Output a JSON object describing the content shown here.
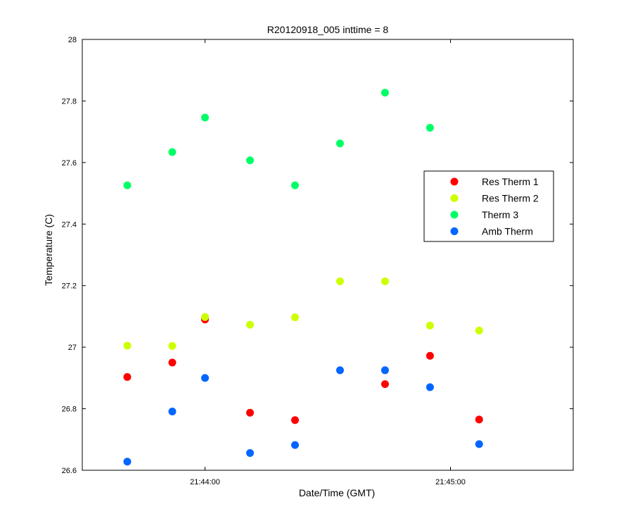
{
  "chart_data": {
    "type": "scatter",
    "title": "R20120918_005 inttime = 8",
    "xlabel": "Date/Time (GMT)",
    "ylabel": "Temperature (C)",
    "x_tick_labels": [
      "21:44:00",
      "21:45:00"
    ],
    "x_ticks": [
      "21:44:00",
      "21:45:00"
    ],
    "xlim": [
      "21:43:30",
      "21:45:30"
    ],
    "ylim": [
      26.6,
      28
    ],
    "y_ticks": [
      26.6,
      26.8,
      27,
      27.2,
      27.4,
      27.6,
      27.8,
      28
    ],
    "y_tick_labels": [
      "26.6",
      "26.8",
      "27",
      "27.2",
      "27.4",
      "27.6",
      "27.8",
      "28"
    ],
    "grid": false,
    "legend_position": "upper-right",
    "series": [
      {
        "name": "Res Therm 1",
        "color": "#ff0000",
        "points": [
          {
            "x": "21:43:41",
            "y": 26.903
          },
          {
            "x": "21:43:52",
            "y": 26.95
          },
          {
            "x": "21:44:00",
            "y": 27.09
          },
          {
            "x": "21:44:11",
            "y": 26.787
          },
          {
            "x": "21:44:22",
            "y": 26.763
          },
          {
            "x": "21:44:44",
            "y": 26.88
          },
          {
            "x": "21:44:55",
            "y": 26.972
          },
          {
            "x": "21:45:07",
            "y": 26.765
          }
        ]
      },
      {
        "name": "Res Therm 2",
        "color": "#ccff00",
        "points": [
          {
            "x": "21:43:41",
            "y": 27.005
          },
          {
            "x": "21:43:52",
            "y": 27.004
          },
          {
            "x": "21:44:00",
            "y": 27.098
          },
          {
            "x": "21:44:11",
            "y": 27.073
          },
          {
            "x": "21:44:22",
            "y": 27.097
          },
          {
            "x": "21:44:33",
            "y": 27.214
          },
          {
            "x": "21:44:44",
            "y": 27.214
          },
          {
            "x": "21:44:55",
            "y": 27.07
          },
          {
            "x": "21:45:07",
            "y": 27.054
          }
        ]
      },
      {
        "name": "Therm 3",
        "color": "#00ff66",
        "points": [
          {
            "x": "21:43:41",
            "y": 27.526
          },
          {
            "x": "21:43:52",
            "y": 27.634
          },
          {
            "x": "21:44:00",
            "y": 27.746
          },
          {
            "x": "21:44:11",
            "y": 27.607
          },
          {
            "x": "21:44:22",
            "y": 27.526
          },
          {
            "x": "21:44:33",
            "y": 27.662
          },
          {
            "x": "21:44:44",
            "y": 27.827
          },
          {
            "x": "21:44:55",
            "y": 27.713
          }
        ]
      },
      {
        "name": "Amb Therm",
        "color": "#0066ff",
        "points": [
          {
            "x": "21:43:41",
            "y": 26.628
          },
          {
            "x": "21:43:52",
            "y": 26.791
          },
          {
            "x": "21:44:00",
            "y": 26.9
          },
          {
            "x": "21:44:11",
            "y": 26.656
          },
          {
            "x": "21:44:22",
            "y": 26.682
          },
          {
            "x": "21:44:33",
            "y": 26.925
          },
          {
            "x": "21:44:44",
            "y": 26.925
          },
          {
            "x": "21:44:55",
            "y": 26.87
          },
          {
            "x": "21:45:07",
            "y": 26.685
          }
        ]
      }
    ]
  }
}
